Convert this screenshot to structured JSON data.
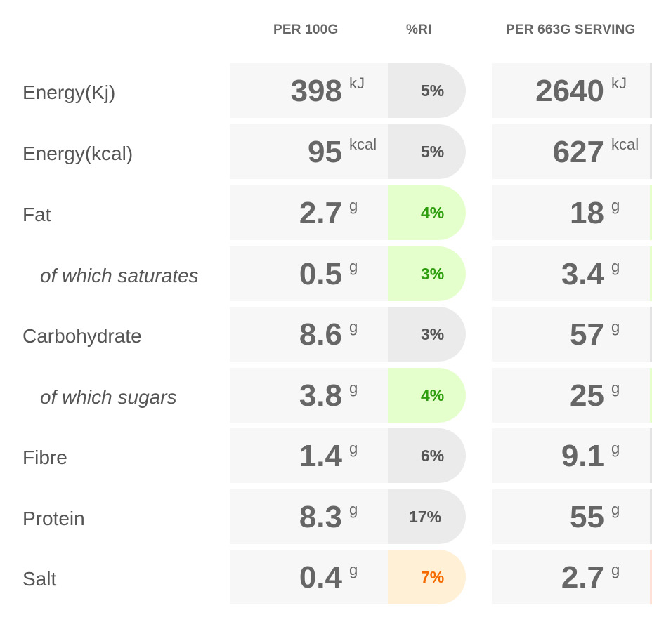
{
  "headers": {
    "per_100g": "PER 100G",
    "ri": "%RI",
    "per_serving": "PER 663G SERVING"
  },
  "rows": [
    {
      "label": "Energy(Kj)",
      "sub": false,
      "per100": "398",
      "per100_unit": "kJ",
      "ri": "5%",
      "ri_level": "grey",
      "serving": "2640",
      "serving_unit": "kJ"
    },
    {
      "label": "Energy(kcal)",
      "sub": false,
      "per100": "95",
      "per100_unit": "kcal",
      "ri": "5%",
      "ri_level": "grey",
      "serving": "627",
      "serving_unit": "kcal"
    },
    {
      "label": "Fat",
      "sub": false,
      "per100": "2.7",
      "per100_unit": "g",
      "ri": "4%",
      "ri_level": "green",
      "serving": "18",
      "serving_unit": "g"
    },
    {
      "label": "of which saturates",
      "sub": true,
      "per100": "0.5",
      "per100_unit": "g",
      "ri": "3%",
      "ri_level": "green",
      "serving": "3.4",
      "serving_unit": "g"
    },
    {
      "label": "Carbohydrate",
      "sub": false,
      "per100": "8.6",
      "per100_unit": "g",
      "ri": "3%",
      "ri_level": "grey",
      "serving": "57",
      "serving_unit": "g"
    },
    {
      "label": "of which sugars",
      "sub": true,
      "per100": "3.8",
      "per100_unit": "g",
      "ri": "4%",
      "ri_level": "green",
      "serving": "25",
      "serving_unit": "g"
    },
    {
      "label": "Fibre",
      "sub": false,
      "per100": "1.4",
      "per100_unit": "g",
      "ri": "6%",
      "ri_level": "grey",
      "serving": "9.1",
      "serving_unit": "g"
    },
    {
      "label": "Protein",
      "sub": false,
      "per100": "8.3",
      "per100_unit": "g",
      "ri": "17%",
      "ri_level": "grey",
      "serving": "55",
      "serving_unit": "g"
    },
    {
      "label": "Salt",
      "sub": false,
      "per100": "0.4",
      "per100_unit": "g",
      "ri": "7%",
      "ri_level": "orange",
      "serving": "2.7",
      "serving_unit": "g"
    }
  ],
  "colors": {
    "grey": "#ebebeb",
    "green": "#e5ffcc",
    "orange": "#fff0d6",
    "green_text": "#2e9e0f",
    "orange_text": "#f56a00"
  }
}
